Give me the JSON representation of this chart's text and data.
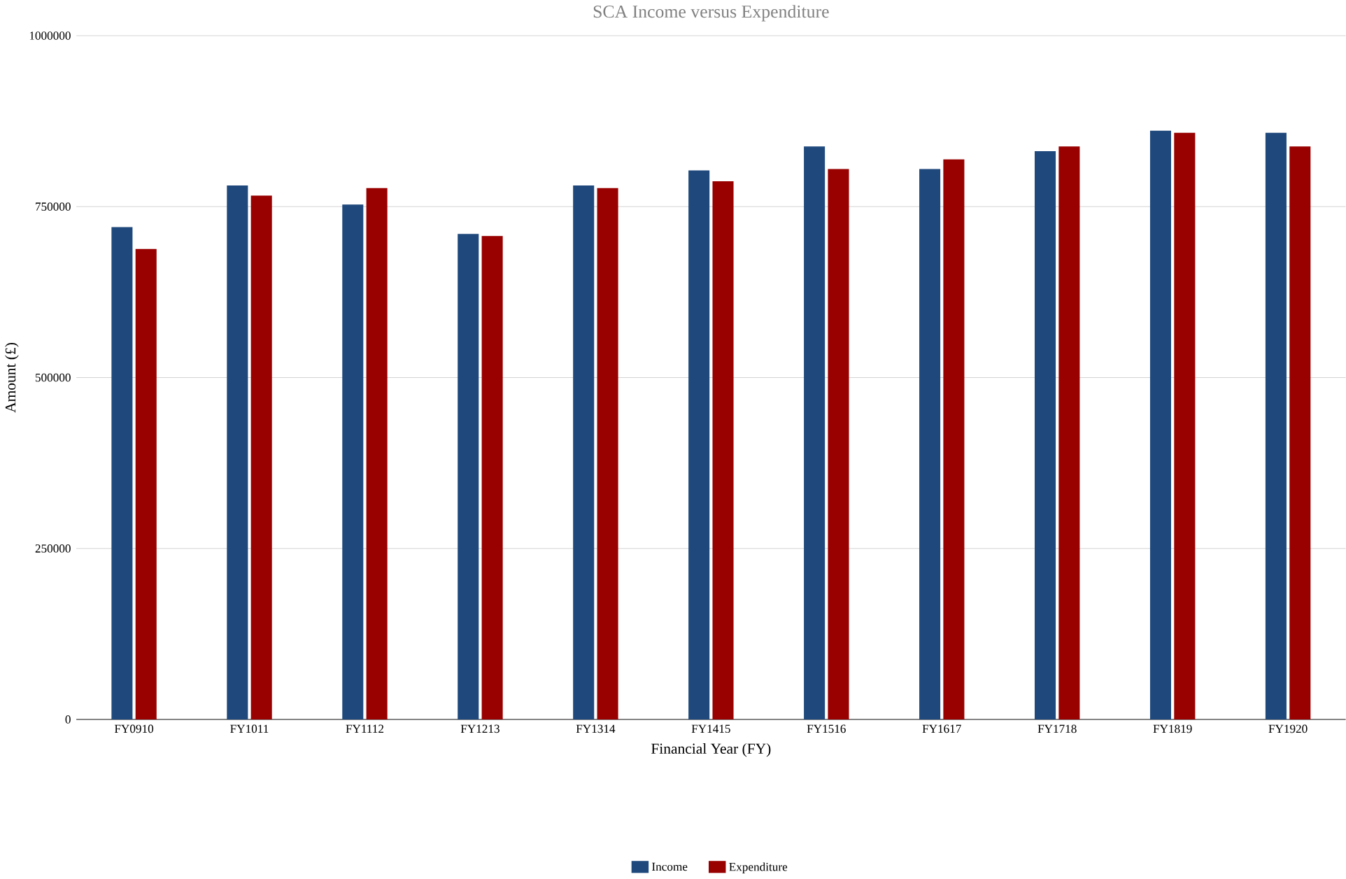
{
  "chart_data": {
    "type": "bar",
    "title": "SCA Income versus Expenditure",
    "xlabel": "Financial Year (FY)",
    "ylabel": "Amount (£)",
    "categories": [
      "FY0910",
      "FY1011",
      "FY1112",
      "FY1213",
      "FY1314",
      "FY1415",
      "FY1516",
      "FY1617",
      "FY1718",
      "FY1819",
      "FY1920"
    ],
    "series": [
      {
        "name": "Income",
        "color": "#1f497d",
        "values": [
          720000,
          781000,
          753000,
          710000,
          781000,
          803000,
          838000,
          805000,
          831000,
          861000,
          858000
        ]
      },
      {
        "name": "Expenditure",
        "color": "#990000",
        "values": [
          688000,
          766000,
          777000,
          707000,
          777000,
          787000,
          805000,
          819000,
          838000,
          858000,
          838000
        ]
      }
    ],
    "ylim": [
      0,
      1000000
    ],
    "yticks": [
      0,
      250000,
      500000,
      750000,
      1000000
    ],
    "grid": "y",
    "legend": "bottom"
  }
}
